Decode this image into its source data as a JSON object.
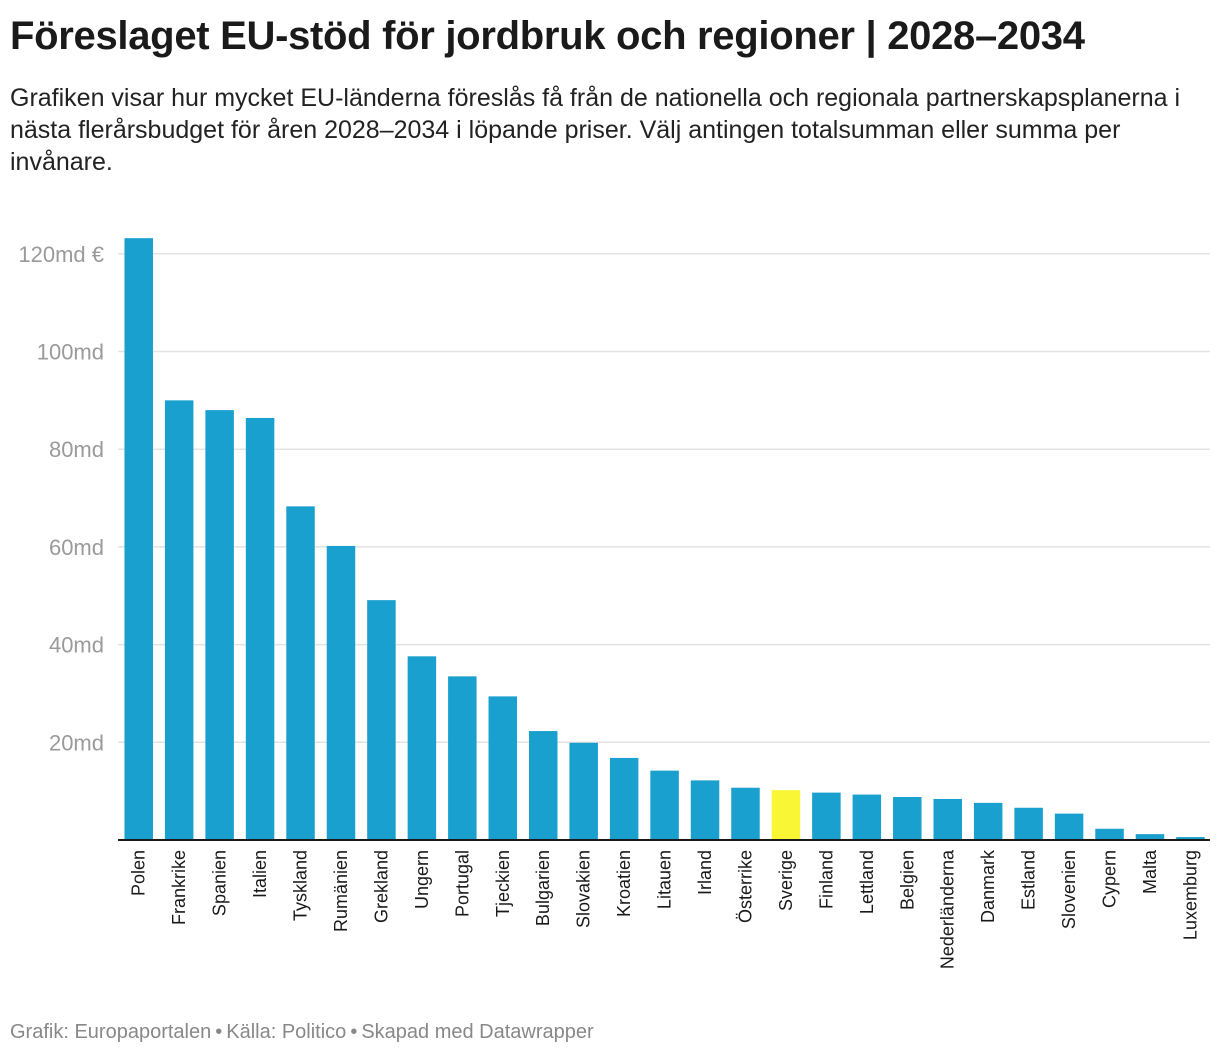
{
  "header": {
    "title": "Föreslaget EU-stöd för jordbruk och regioner | 2028–2034",
    "subtitle": "Grafiken visar hur mycket EU-länderna föreslås få från de nationella och regionala partnerskapsplanerna i nästa flerårsbudget för åren 2028–2034 i löpande priser. Välj antingen totalsumman eller summa per invånare."
  },
  "footer": {
    "credit": "Grafik: Europaportalen",
    "source": "Källa: Politico",
    "made_with": "Skapad med Datawrapper",
    "separator": "•"
  },
  "colors": {
    "bar": "#1aa0cf",
    "highlight": "#f8f635",
    "grid": "#e3e3e3",
    "axis": "#1a1a1a",
    "tick_text": "#9a9a9a"
  },
  "chart_data": {
    "type": "bar",
    "categories": [
      "Polen",
      "Frankrike",
      "Spanien",
      "Italien",
      "Tyskland",
      "Rumänien",
      "Grekland",
      "Ungern",
      "Portugal",
      "Tjeckien",
      "Bulgarien",
      "Slovakien",
      "Kroatien",
      "Litauen",
      "Irland",
      "Österrike",
      "Sverige",
      "Finland",
      "Lettland",
      "Belgien",
      "Nederländerna",
      "Danmark",
      "Estland",
      "Slovenien",
      "Cypern",
      "Malta",
      "Luxemburg"
    ],
    "values": [
      123.2,
      90.0,
      88.0,
      86.4,
      68.3,
      60.2,
      49.1,
      37.6,
      33.5,
      29.4,
      22.3,
      19.9,
      16.8,
      14.2,
      12.2,
      10.7,
      10.2,
      9.7,
      9.3,
      8.8,
      8.4,
      7.6,
      6.6,
      5.4,
      2.3,
      1.2,
      0.6
    ],
    "highlight_category": "Sverige",
    "ylim": [
      0,
      125
    ],
    "yticks": [
      20,
      40,
      60,
      80,
      100,
      120
    ],
    "ytick_labels": [
      "20md",
      "40md",
      "60md",
      "80md",
      "100md",
      "120md €"
    ],
    "grid": true,
    "xlabel": "",
    "ylabel": ""
  }
}
